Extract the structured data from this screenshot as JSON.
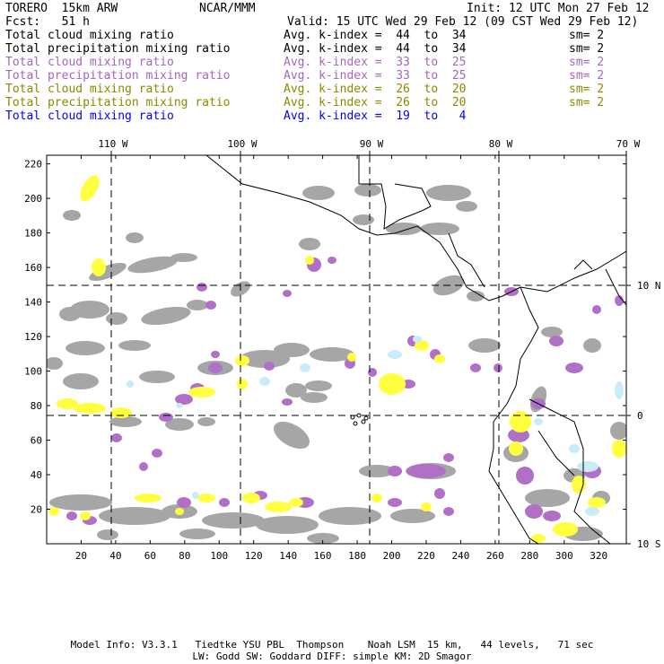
{
  "header": {
    "model": "TORERO  15km ARW",
    "center": "NCAR/MMM",
    "init": "Init: 12 UTC Mon 27 Feb 12",
    "fcst": "Fcst:   51 h",
    "valid": "Valid: 15 UTC Wed 29 Feb 12 (09 CST Wed 29 Feb 12)"
  },
  "legend_rows": [
    {
      "field": "Total cloud mixing ratio",
      "kindex": "Avg. k-index =  44  to  34",
      "sm": "sm= 2",
      "color": "#000000",
      "cls": "c-black"
    },
    {
      "field": "Total precipitation mixing ratio",
      "kindex": "Avg. k-index =  44  to  34",
      "sm": "sm= 2",
      "color": "#000000",
      "cls": "c-black"
    },
    {
      "field": "Total cloud mixing ratio",
      "kindex": "Avg. k-index =  33  to  25",
      "sm": "sm= 2",
      "color": "#a864c0",
      "cls": "c-purple"
    },
    {
      "field": "Total precipitation mixing ratio",
      "kindex": "Avg. k-index =  33  to  25",
      "sm": "sm= 2",
      "color": "#a864c0",
      "cls": "c-purple"
    },
    {
      "field": "Total cloud mixing ratio",
      "kindex": "Avg. k-index =  26  to  20",
      "sm": "sm= 2",
      "color": "#8a8a00",
      "cls": "c-olive"
    },
    {
      "field": "Total precipitation mixing ratio",
      "kindex": "Avg. k-index =  26  to  20",
      "sm": "sm= 2",
      "color": "#8a8a00",
      "cls": "c-olive"
    },
    {
      "field": "Total cloud mixing ratio",
      "kindex": "Avg. k-index =  19  to   4",
      "sm": "",
      "color": "#0000ff",
      "cls": "c-blue"
    }
  ],
  "map": {
    "lon_labels": [
      "110 W",
      "100 W",
      "90 W",
      "80 W",
      "70 W"
    ],
    "lat_labels": [
      "10 N",
      "0",
      "10 S"
    ],
    "x_ticks": [
      "20",
      "40",
      "60",
      "80",
      "100",
      "120",
      "140",
      "160",
      "180",
      "200",
      "220",
      "240",
      "260",
      "280",
      "300",
      "320"
    ],
    "y_ticks": [
      "20",
      "40",
      "60",
      "80",
      "100",
      "120",
      "140",
      "160",
      "180",
      "200",
      "220"
    ],
    "colors": {
      "gray": "#a6a6a6",
      "purple": "#b070c8",
      "yellow": "#ffff40",
      "cyan": "#c8ecf8",
      "coast": "#000000",
      "grid": "#000000"
    }
  },
  "footer": {
    "line1": "Model Info: V3.3.1   Tiedtke YSU PBL  Thompson    Noah LSM  15 km,   44 levels,   71 sec",
    "line2": "LW: Godd SW: Goddard DIFF: simple KM: 2D Smagor"
  }
}
